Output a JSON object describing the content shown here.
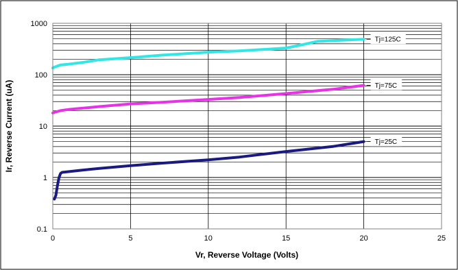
{
  "chart_data": {
    "type": "line",
    "xlabel": "Vr, Reverse Voltage (Volts)",
    "ylabel": "Ir, Reverse Current (uA)",
    "xlim": [
      0,
      25
    ],
    "ylim": [
      0.1,
      1000
    ],
    "yscale": "log",
    "grid": "on",
    "legend": "labels at right end of each series",
    "x_ticks": [
      "0",
      "5",
      "10",
      "15",
      "20",
      "25"
    ],
    "y_ticks": [
      "0.1",
      "1",
      "10",
      "100",
      "1000"
    ],
    "series": [
      {
        "name": "Tj=125C",
        "color": "#33e6e6",
        "x": [
          0,
          0.1,
          0.5,
          1,
          2,
          3,
          5,
          7,
          10,
          12,
          15,
          16,
          17,
          18,
          20
        ],
        "y": [
          135,
          140,
          155,
          160,
          175,
          195,
          215,
          240,
          275,
          290,
          330,
          380,
          445,
          460,
          490
        ]
      },
      {
        "name": "Tj=75C",
        "color": "#e633e6",
        "x": [
          0,
          0.1,
          0.5,
          1,
          3,
          5,
          7,
          10,
          12,
          15,
          18,
          20
        ],
        "y": [
          18,
          18.5,
          20,
          21,
          24,
          27,
          29,
          33,
          36,
          43,
          52,
          62
        ]
      },
      {
        "name": "Tj=25C",
        "color": "#1a1a80",
        "x": [
          0.1,
          0.2,
          0.3,
          0.4,
          0.5,
          0.6,
          0.8,
          1,
          2,
          3,
          5,
          7,
          10,
          12,
          15,
          18,
          20
        ],
        "y": [
          0.38,
          0.45,
          0.7,
          1.0,
          1.2,
          1.26,
          1.28,
          1.3,
          1.4,
          1.5,
          1.7,
          1.9,
          2.2,
          2.5,
          3.2,
          4.0,
          5.0
        ]
      }
    ]
  }
}
